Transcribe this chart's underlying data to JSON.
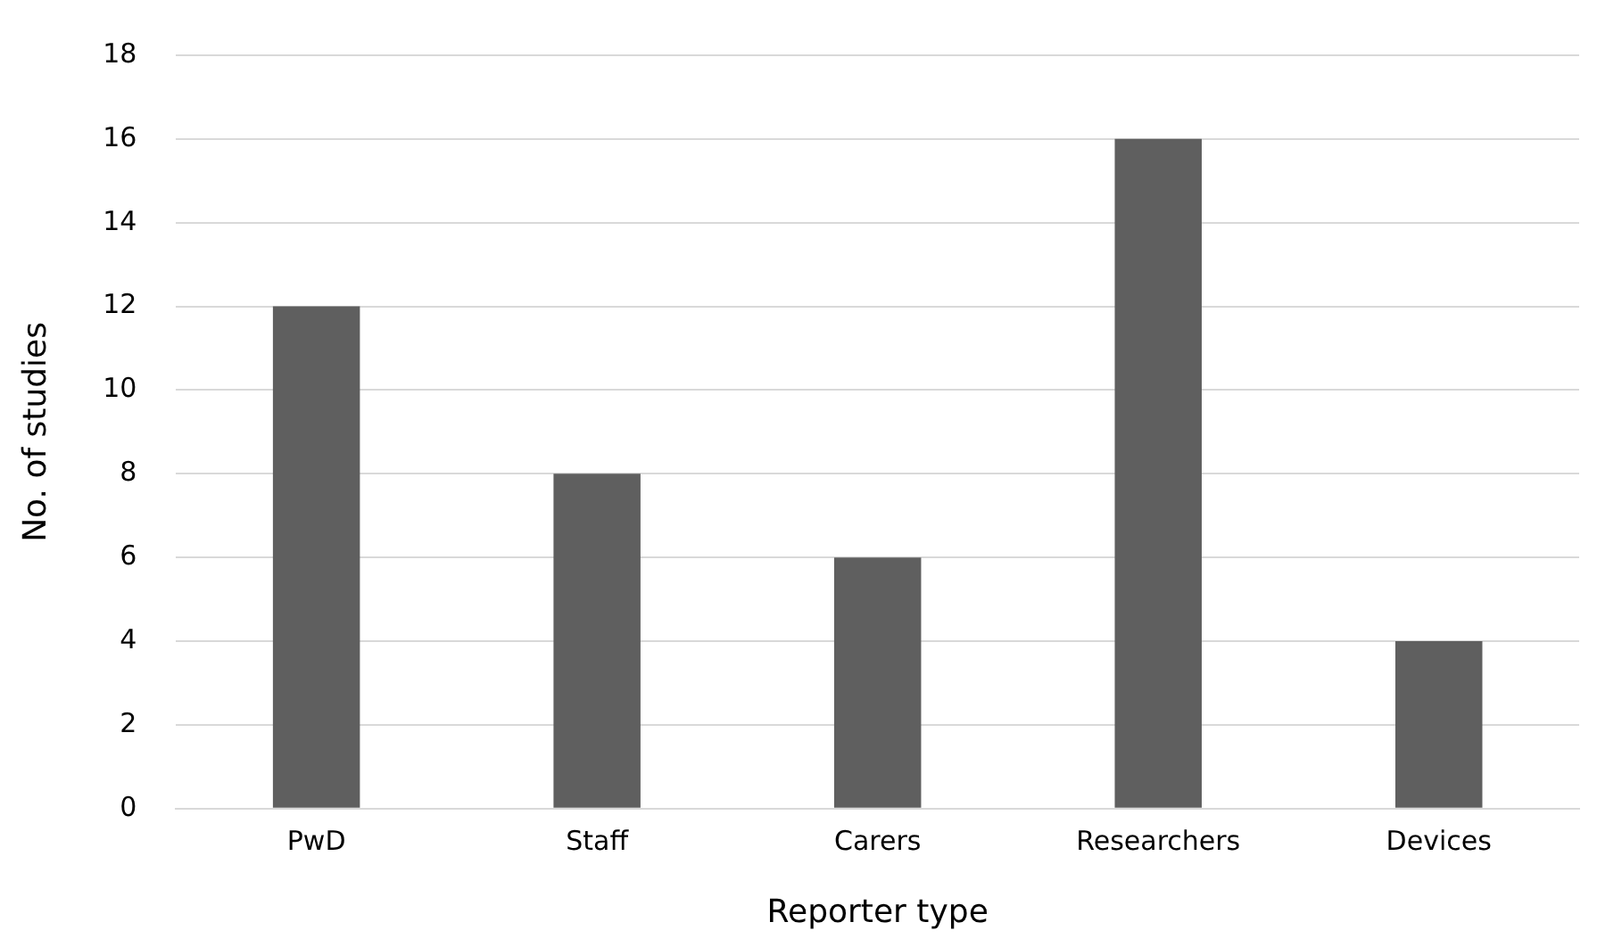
{
  "chart_data": {
    "type": "bar",
    "xlabel": "Reporter type",
    "ylabel": "No. of studies",
    "categories": [
      "PwD",
      "Staff",
      "Carers",
      "Researchers",
      "Devices"
    ],
    "values": [
      12,
      8,
      6,
      16,
      4
    ],
    "color": "#5f5f5f",
    "ylim": [
      0,
      18
    ],
    "yticks": [
      0,
      2,
      4,
      6,
      8,
      10,
      12,
      14,
      16,
      18
    ],
    "grid": "y",
    "legend": false
  }
}
